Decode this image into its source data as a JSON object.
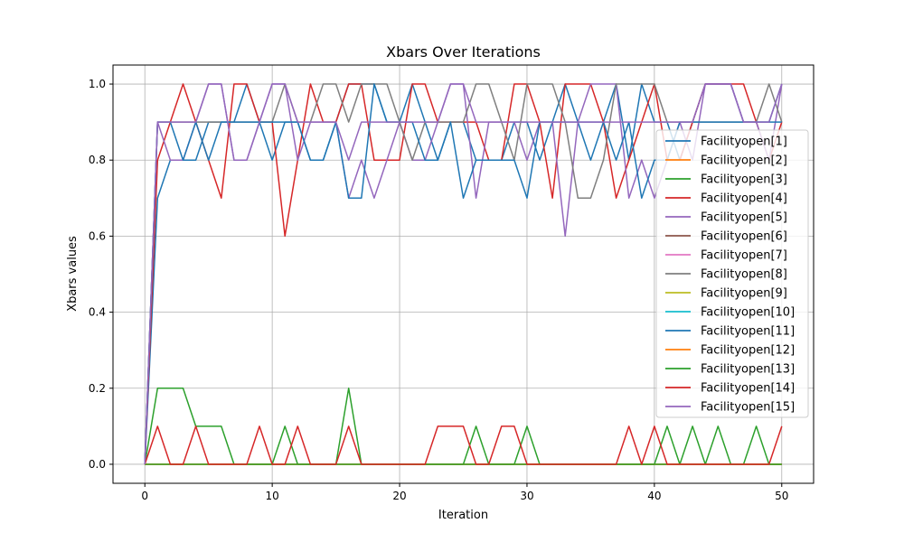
{
  "chart_data": {
    "type": "line",
    "title": "Xbars Over Iterations",
    "xlabel": "Iteration",
    "ylabel": "Xbars values",
    "xlim": [
      -2.5,
      52.5
    ],
    "ylim": [
      -0.05,
      1.05
    ],
    "xticks": [
      0,
      10,
      20,
      30,
      40,
      50
    ],
    "xtick_labels": [
      "0",
      "10",
      "20",
      "30",
      "40",
      "50"
    ],
    "yticks": [
      0.0,
      0.2,
      0.4,
      0.6,
      0.8,
      1.0
    ],
    "ytick_labels": [
      "0.0",
      "0.2",
      "0.4",
      "0.6",
      "0.8",
      "1.0"
    ],
    "grid": true,
    "legend_position": "center-right",
    "series": [
      {
        "name": "Facilityopen[1]",
        "color": "#1f77b4",
        "y": [
          0,
          0.7,
          0.8,
          0.8,
          0.8,
          0.9,
          0.9,
          0.9,
          1.0,
          0.9,
          0.8,
          0.9,
          0.9,
          0.8,
          0.8,
          0.9,
          1.0,
          1.0,
          1.0,
          0.9,
          0.9,
          1.0,
          0.9,
          0.8,
          0.9,
          0.9,
          0.8,
          0.8,
          0.8,
          0.9,
          0.9,
          0.8,
          0.9,
          1.0,
          0.9,
          0.8,
          0.9,
          1.0,
          0.8,
          1.0,
          0.9,
          0.9,
          0.8,
          0.9,
          1.0,
          1.0,
          1.0,
          0.9,
          0.9,
          0.9,
          1.0
        ]
      },
      {
        "name": "Facilityopen[2]",
        "color": "#ff7f0e",
        "y": [
          0,
          0,
          0,
          0,
          0,
          0,
          0,
          0,
          0,
          0,
          0,
          0,
          0,
          0,
          0,
          0,
          0,
          0,
          0,
          0,
          0,
          0,
          0,
          0,
          0,
          0,
          0,
          0,
          0,
          0,
          0,
          0,
          0,
          0,
          0,
          0,
          0,
          0,
          0,
          0,
          0,
          0,
          0,
          0,
          0,
          0,
          0,
          0,
          0,
          0,
          0
        ]
      },
      {
        "name": "Facilityopen[3]",
        "color": "#2ca02c",
        "y": [
          0,
          0.2,
          0.2,
          0.2,
          0.1,
          0.1,
          0.1,
          0,
          0,
          0,
          0,
          0.1,
          0,
          0,
          0,
          0,
          0.2,
          0,
          0,
          0,
          0,
          0,
          0,
          0,
          0,
          0,
          0.1,
          0,
          0,
          0,
          0.1,
          0,
          0,
          0,
          0,
          0,
          0,
          0,
          0,
          0,
          0,
          0.1,
          0,
          0.1,
          0,
          0.1,
          0,
          0,
          0.1,
          0,
          0
        ]
      },
      {
        "name": "Facilityopen[4]",
        "color": "#d62728",
        "y": [
          0,
          0.8,
          0.9,
          1.0,
          0.9,
          0.8,
          0.7,
          1.0,
          1.0,
          0.9,
          0.9,
          0.6,
          0.8,
          1.0,
          0.9,
          0.9,
          1.0,
          1.0,
          0.8,
          0.8,
          0.8,
          1.0,
          1.0,
          0.9,
          0.9,
          0.9,
          0.9,
          0.8,
          0.8,
          1.0,
          1.0,
          0.9,
          0.7,
          1.0,
          1.0,
          1.0,
          0.9,
          0.7,
          0.8,
          0.9,
          1.0,
          0.8,
          0.8,
          0.9,
          1.0,
          1.0,
          1.0,
          1.0,
          0.9,
          0.8,
          0.9
        ]
      },
      {
        "name": "Facilityopen[5]",
        "color": "#9467bd",
        "y": [
          0,
          0.9,
          0.8,
          0.8,
          0.9,
          1.0,
          1.0,
          0.8,
          0.8,
          0.9,
          1.0,
          1.0,
          0.8,
          0.9,
          0.9,
          0.9,
          0.7,
          0.8,
          0.7,
          0.8,
          0.9,
          0.8,
          0.8,
          0.9,
          1.0,
          1.0,
          0.7,
          0.9,
          0.9,
          0.9,
          0.8,
          0.9,
          0.9,
          0.6,
          0.9,
          1.0,
          1.0,
          1.0,
          0.7,
          0.8,
          0.7,
          0.8,
          0.9,
          0.8,
          1.0,
          1.0,
          1.0,
          0.9,
          0.9,
          0.8,
          1.0
        ]
      },
      {
        "name": "Facilityopen[6]",
        "color": "#8c564b",
        "y": []
      },
      {
        "name": "Facilityopen[7]",
        "color": "#e377c2",
        "y": []
      },
      {
        "name": "Facilityopen[8]",
        "color": "#7f7f7f",
        "y": [
          0,
          0.9,
          0.9,
          0.9,
          0.9,
          0.9,
          0.9,
          0.9,
          0.9,
          0.9,
          0.9,
          1.0,
          0.9,
          0.9,
          1.0,
          1.0,
          0.9,
          1.0,
          1.0,
          1.0,
          0.9,
          0.8,
          0.9,
          0.9,
          0.9,
          0.9,
          1.0,
          1.0,
          0.9,
          0.8,
          1.0,
          1.0,
          1.0,
          0.9,
          0.7,
          0.7,
          0.8,
          1.0,
          1.0,
          1.0,
          1.0,
          0.9,
          0.9,
          0.9,
          0.9,
          0.9,
          0.9,
          0.9,
          0.9,
          1.0,
          0.9
        ]
      },
      {
        "name": "Facilityopen[9]",
        "color": "#bcbd22",
        "y": []
      },
      {
        "name": "Facilityopen[10]",
        "color": "#17becf",
        "y": []
      },
      {
        "name": "Facilityopen[11]",
        "color": "#1f77b4",
        "y": [
          0,
          0.9,
          0.9,
          0.8,
          0.9,
          0.8,
          0.9,
          0.9,
          0.9,
          0.9,
          0.9,
          0.9,
          0.9,
          0.8,
          0.8,
          0.9,
          0.7,
          0.7,
          1.0,
          0.9,
          0.9,
          0.9,
          0.8,
          0.8,
          0.9,
          0.7,
          0.8,
          0.8,
          0.8,
          0.8,
          0.7,
          0.9,
          0.9,
          0.9,
          0.9,
          0.9,
          0.9,
          0.8,
          0.9,
          0.7,
          0.8,
          0.8,
          0.9,
          0.9,
          0.9,
          0.9,
          0.9,
          0.9,
          0.9,
          0.9,
          0.9
        ]
      },
      {
        "name": "Facilityopen[12]",
        "color": "#ff7f0e",
        "y": [
          0,
          0,
          0,
          0,
          0,
          0,
          0,
          0,
          0,
          0,
          0,
          0,
          0,
          0,
          0,
          0,
          0,
          0,
          0,
          0,
          0,
          0,
          0,
          0,
          0,
          0,
          0,
          0,
          0,
          0,
          0,
          0,
          0,
          0,
          0,
          0,
          0,
          0,
          0,
          0,
          0,
          0,
          0,
          0,
          0,
          0,
          0,
          0,
          0,
          0,
          0
        ]
      },
      {
        "name": "Facilityopen[13]",
        "color": "#2ca02c",
        "y": [
          0,
          0,
          0,
          0,
          0,
          0,
          0,
          0,
          0,
          0,
          0,
          0,
          0,
          0,
          0,
          0,
          0,
          0,
          0,
          0,
          0,
          0,
          0,
          0,
          0,
          0,
          0,
          0,
          0,
          0,
          0,
          0,
          0,
          0,
          0,
          0,
          0,
          0,
          0,
          0,
          0,
          0,
          0,
          0,
          0,
          0,
          0,
          0,
          0,
          0,
          0
        ]
      },
      {
        "name": "Facilityopen[14]",
        "color": "#d62728",
        "y": [
          0,
          0.1,
          0,
          0,
          0.1,
          0,
          0,
          0,
          0,
          0.1,
          0,
          0,
          0.1,
          0,
          0,
          0,
          0.1,
          0,
          0,
          0,
          0,
          0,
          0,
          0.1,
          0.1,
          0.1,
          0,
          0,
          0.1,
          0.1,
          0,
          0,
          0,
          0,
          0,
          0,
          0,
          0,
          0.1,
          0,
          0.1,
          0,
          0,
          0,
          0,
          0,
          0,
          0,
          0,
          0,
          0.1
        ]
      },
      {
        "name": "Facilityopen[15]",
        "color": "#9467bd",
        "y": [
          0,
          0.9,
          0.9,
          0.9,
          0.9,
          1.0,
          1.0,
          0.8,
          0.8,
          0.9,
          1.0,
          1.0,
          0.9,
          0.9,
          0.9,
          0.9,
          0.8,
          0.9,
          0.9,
          0.9,
          0.9,
          0.9,
          0.9,
          0.9,
          1.0,
          1.0,
          0.9,
          0.9,
          0.9,
          0.9,
          0.9,
          0.9,
          0.9,
          0.9,
          0.9,
          0.9,
          0.9,
          0.9,
          0.9,
          0.9,
          0.9,
          0.9,
          0.9,
          0.9,
          1.0,
          1.0,
          1.0,
          0.9,
          0.9,
          0.9,
          1.0
        ]
      }
    ]
  }
}
